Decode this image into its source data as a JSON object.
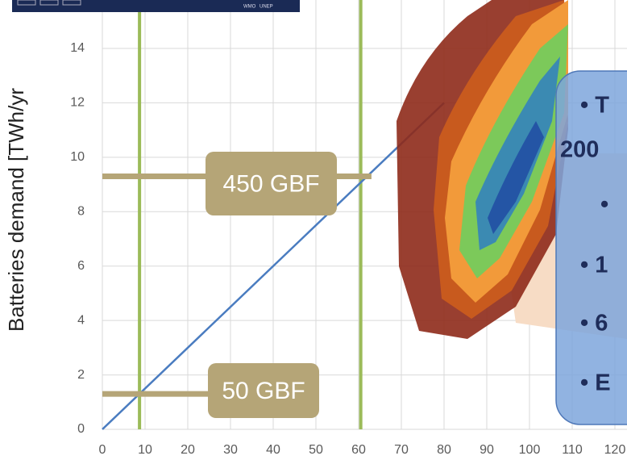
{
  "chart_data": {
    "type": "line",
    "y_label": "Batteries demand [TWh/yr",
    "x": [
      0,
      80
    ],
    "series": [
      {
        "color": "#4a7cc0",
        "values": [
          0,
          12
        ]
      }
    ],
    "xlim": [
      0,
      120
    ],
    "xticks": [
      0,
      10,
      20,
      30,
      40,
      50,
      60,
      70,
      80,
      90,
      100,
      110,
      120
    ],
    "ylim": [
      0,
      14
    ],
    "yticks": [
      0,
      2,
      4,
      6,
      8,
      10,
      12,
      14
    ],
    "grid": true,
    "vlines": {
      "color": "#9bbb59",
      "x": [
        8.7,
        60.5
      ]
    },
    "annotations": [
      {
        "label": "450 GBF",
        "y": 9.3,
        "x": [
          0,
          63
        ],
        "color": "#b5a577"
      },
      {
        "label": "50 GBF",
        "y": 1.3,
        "x": [
          0,
          25
        ],
        "color": "#b5a577"
      }
    ]
  },
  "banner": {
    "texts": [
      "WMO",
      "UNEP"
    ]
  },
  "text_box": {
    "lines": [
      "• T",
      "200",
      "•",
      "• 1",
      "• 6",
      "• E"
    ]
  }
}
